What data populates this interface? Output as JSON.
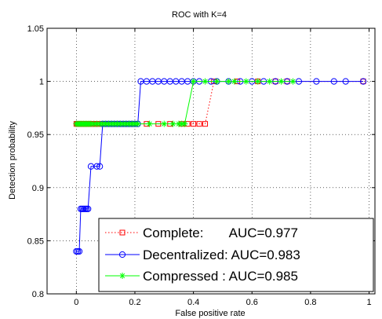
{
  "chart_data": {
    "type": "line",
    "title": "ROC with K=4",
    "xlabel": "False positive rate",
    "ylabel": "Detection probability",
    "xlim": [
      -0.1,
      1.02
    ],
    "ylim": [
      0.8,
      1.05
    ],
    "xticks": [
      "0",
      "0.2",
      "0.4",
      "0.6",
      "0.8",
      "1"
    ],
    "yticks": [
      "0.8",
      "0.85",
      "0.9",
      "0.95",
      "1",
      "1.05"
    ],
    "xtick_values": [
      0,
      0.2,
      0.4,
      0.6,
      0.8,
      1
    ],
    "ytick_values": [
      0.8,
      0.85,
      0.9,
      0.95,
      1,
      1.05
    ],
    "grid": true,
    "legend_placement": "bottom-right",
    "series": [
      {
        "name": "Complete:       AUC=0.977",
        "color": "#ff0000",
        "line_style": "dotted",
        "marker": "square",
        "x": [
          0.0,
          0.003,
          0.006,
          0.01,
          0.013,
          0.017,
          0.02,
          0.024,
          0.028,
          0.032,
          0.036,
          0.04,
          0.045,
          0.05,
          0.055,
          0.06,
          0.065,
          0.07,
          0.075,
          0.08,
          0.09,
          0.1,
          0.11,
          0.12,
          0.13,
          0.14,
          0.15,
          0.16,
          0.17,
          0.18,
          0.19,
          0.2,
          0.24,
          0.28,
          0.32,
          0.36,
          0.38,
          0.4,
          0.42,
          0.44,
          0.47,
          0.55,
          0.62,
          0.68,
          0.72,
          0.98
        ],
        "y": [
          0.96,
          0.96,
          0.96,
          0.96,
          0.96,
          0.96,
          0.96,
          0.96,
          0.96,
          0.96,
          0.96,
          0.96,
          0.96,
          0.96,
          0.96,
          0.96,
          0.96,
          0.96,
          0.96,
          0.96,
          0.96,
          0.96,
          0.96,
          0.96,
          0.96,
          0.96,
          0.96,
          0.96,
          0.96,
          0.96,
          0.96,
          0.96,
          0.96,
          0.96,
          0.96,
          0.96,
          0.96,
          0.96,
          0.96,
          0.96,
          1.0,
          1.0,
          1.0,
          1.0,
          1.0,
          1.0
        ]
      },
      {
        "name": "Decentralized: AUC=0.983",
        "color": "#0000ff",
        "line_style": "solid",
        "marker": "circle",
        "x": [
          0.0,
          0.005,
          0.01,
          0.015,
          0.02,
          0.025,
          0.03,
          0.035,
          0.04,
          0.05,
          0.07,
          0.08,
          0.09,
          0.1,
          0.11,
          0.12,
          0.13,
          0.14,
          0.15,
          0.16,
          0.17,
          0.18,
          0.19,
          0.2,
          0.21,
          0.22,
          0.24,
          0.26,
          0.28,
          0.3,
          0.32,
          0.34,
          0.36,
          0.38,
          0.4,
          0.42,
          0.46,
          0.48,
          0.52,
          0.56,
          0.6,
          0.64,
          0.68,
          0.72,
          0.76,
          0.82,
          0.88,
          0.92,
          0.98
        ],
        "y": [
          0.84,
          0.84,
          0.84,
          0.88,
          0.88,
          0.88,
          0.88,
          0.88,
          0.88,
          0.92,
          0.92,
          0.92,
          0.96,
          0.96,
          0.96,
          0.96,
          0.96,
          0.96,
          0.96,
          0.96,
          0.96,
          0.96,
          0.96,
          0.96,
          0.96,
          1.0,
          1.0,
          1.0,
          1.0,
          1.0,
          1.0,
          1.0,
          1.0,
          1.0,
          1.0,
          1.0,
          1.0,
          1.0,
          1.0,
          1.0,
          1.0,
          1.0,
          1.0,
          1.0,
          1.0,
          1.0,
          1.0,
          1.0,
          1.0
        ]
      },
      {
        "name": "Compressed : AUC=0.985",
        "color": "#00ff00",
        "line_style": "solid",
        "marker": "star",
        "x": [
          0.0,
          0.005,
          0.01,
          0.015,
          0.02,
          0.025,
          0.03,
          0.035,
          0.04,
          0.045,
          0.05,
          0.06,
          0.07,
          0.08,
          0.09,
          0.1,
          0.11,
          0.12,
          0.13,
          0.14,
          0.15,
          0.16,
          0.17,
          0.18,
          0.19,
          0.2,
          0.21,
          0.25,
          0.3,
          0.33,
          0.35,
          0.36,
          0.37,
          0.4,
          0.44,
          0.48,
          0.52,
          0.54,
          0.58,
          0.62,
          0.66,
          0.7,
          0.74
        ],
        "y": [
          0.96,
          0.96,
          0.96,
          0.96,
          0.96,
          0.96,
          0.96,
          0.96,
          0.96,
          0.96,
          0.96,
          0.96,
          0.96,
          0.96,
          0.96,
          0.96,
          0.96,
          0.96,
          0.96,
          0.96,
          0.96,
          0.96,
          0.96,
          0.96,
          0.96,
          0.96,
          0.96,
          0.96,
          0.96,
          0.96,
          0.96,
          0.96,
          0.96,
          1.0,
          1.0,
          1.0,
          1.0,
          1.0,
          1.0,
          1.0,
          1.0,
          1.0,
          1.0
        ]
      }
    ]
  }
}
